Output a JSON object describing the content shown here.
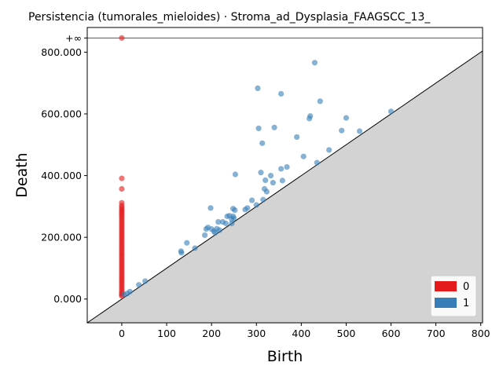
{
  "chart_data": {
    "type": "scatter",
    "title": "Persistencia (tumorales_mieloides) · Stroma_ad_Dysplasia_FAAGSCC_13_",
    "xlabel": "Birth",
    "ylabel": "Death",
    "xlim": [
      -77,
      804
    ],
    "ylim": [
      -77,
      880
    ],
    "x_ticks": [
      0,
      100,
      200,
      300,
      400,
      500,
      600,
      700,
      800
    ],
    "y_ticks": [
      0,
      200000,
      400000,
      600000,
      800000
    ],
    "y_tick_labels": [
      "0.000",
      "200.000",
      "400.000",
      "600.000",
      "800.000"
    ],
    "y_tick_scale": 0.001,
    "infinity_label": "+∞",
    "infinity_value": 846,
    "diagonal": true,
    "legend": {
      "placement": "lower-right",
      "entries": [
        {
          "label": "0",
          "color": "#e41a1c"
        },
        {
          "label": "1",
          "color": "#377eb8"
        }
      ]
    },
    "series": [
      {
        "name": "0",
        "color": "#e41a1c",
        "points": [
          [
            0,
            846
          ],
          [
            0,
            391
          ],
          [
            0,
            357
          ],
          [
            0,
            312
          ],
          [
            0,
            303
          ],
          [
            0,
            297
          ],
          [
            0,
            291
          ],
          [
            0,
            286
          ],
          [
            0,
            281
          ],
          [
            0,
            275
          ],
          [
            0,
            270
          ],
          [
            0,
            264
          ],
          [
            0,
            258
          ],
          [
            0,
            252
          ],
          [
            0,
            246
          ],
          [
            0,
            240
          ],
          [
            0,
            234
          ],
          [
            0,
            228
          ],
          [
            0,
            222
          ],
          [
            0,
            216
          ],
          [
            0,
            210
          ],
          [
            0,
            204
          ],
          [
            0,
            198
          ],
          [
            0,
            192
          ],
          [
            0,
            186
          ],
          [
            0,
            180
          ],
          [
            0,
            174
          ],
          [
            0,
            168
          ],
          [
            0,
            162
          ],
          [
            0,
            156
          ],
          [
            0,
            150
          ],
          [
            0,
            144
          ],
          [
            0,
            138
          ],
          [
            0,
            132
          ],
          [
            0,
            126
          ],
          [
            0,
            120
          ],
          [
            0,
            114
          ],
          [
            0,
            108
          ],
          [
            0,
            102
          ],
          [
            0,
            96
          ],
          [
            0,
            90
          ],
          [
            0,
            84
          ],
          [
            0,
            78
          ],
          [
            0,
            72
          ],
          [
            0,
            66
          ],
          [
            0,
            60
          ],
          [
            0,
            54
          ],
          [
            0,
            48
          ],
          [
            0,
            42
          ],
          [
            0,
            36
          ],
          [
            0,
            30
          ],
          [
            0,
            24
          ],
          [
            0,
            18
          ],
          [
            0,
            14
          ],
          [
            0,
            10
          ]
        ]
      },
      {
        "name": "1",
        "color": "#377eb8",
        "points": [
          [
            5,
            15
          ],
          [
            12,
            18
          ],
          [
            18,
            24
          ],
          [
            38,
            46
          ],
          [
            52,
            58
          ],
          [
            132,
            155
          ],
          [
            133,
            150
          ],
          [
            145,
            182
          ],
          [
            163,
            165
          ],
          [
            185,
            207
          ],
          [
            188,
            227
          ],
          [
            192,
            232
          ],
          [
            198,
            295
          ],
          [
            200,
            227
          ],
          [
            205,
            220
          ],
          [
            208,
            215
          ],
          [
            212,
            228
          ],
          [
            215,
            250
          ],
          [
            218,
            223
          ],
          [
            225,
            250
          ],
          [
            232,
            245
          ],
          [
            235,
            268
          ],
          [
            240,
            270
          ],
          [
            245,
            258
          ],
          [
            245,
            245
          ],
          [
            248,
            293
          ],
          [
            248,
            268
          ],
          [
            252,
            288
          ],
          [
            250,
            262
          ],
          [
            253,
            404
          ],
          [
            275,
            290
          ],
          [
            280,
            295
          ],
          [
            290,
            320
          ],
          [
            300,
            305
          ],
          [
            303,
            683
          ],
          [
            305,
            553
          ],
          [
            310,
            410
          ],
          [
            313,
            505
          ],
          [
            315,
            322
          ],
          [
            318,
            357
          ],
          [
            320,
            385
          ],
          [
            323,
            348
          ],
          [
            332,
            400
          ],
          [
            337,
            377
          ],
          [
            340,
            556
          ],
          [
            355,
            665
          ],
          [
            355,
            422
          ],
          [
            358,
            384
          ],
          [
            368,
            428
          ],
          [
            390,
            525
          ],
          [
            405,
            462
          ],
          [
            418,
            585
          ],
          [
            420,
            593
          ],
          [
            430,
            766
          ],
          [
            435,
            442
          ],
          [
            442,
            641
          ],
          [
            462,
            483
          ],
          [
            490,
            546
          ],
          [
            500,
            587
          ],
          [
            530,
            544
          ],
          [
            600,
            608
          ]
        ]
      }
    ]
  }
}
